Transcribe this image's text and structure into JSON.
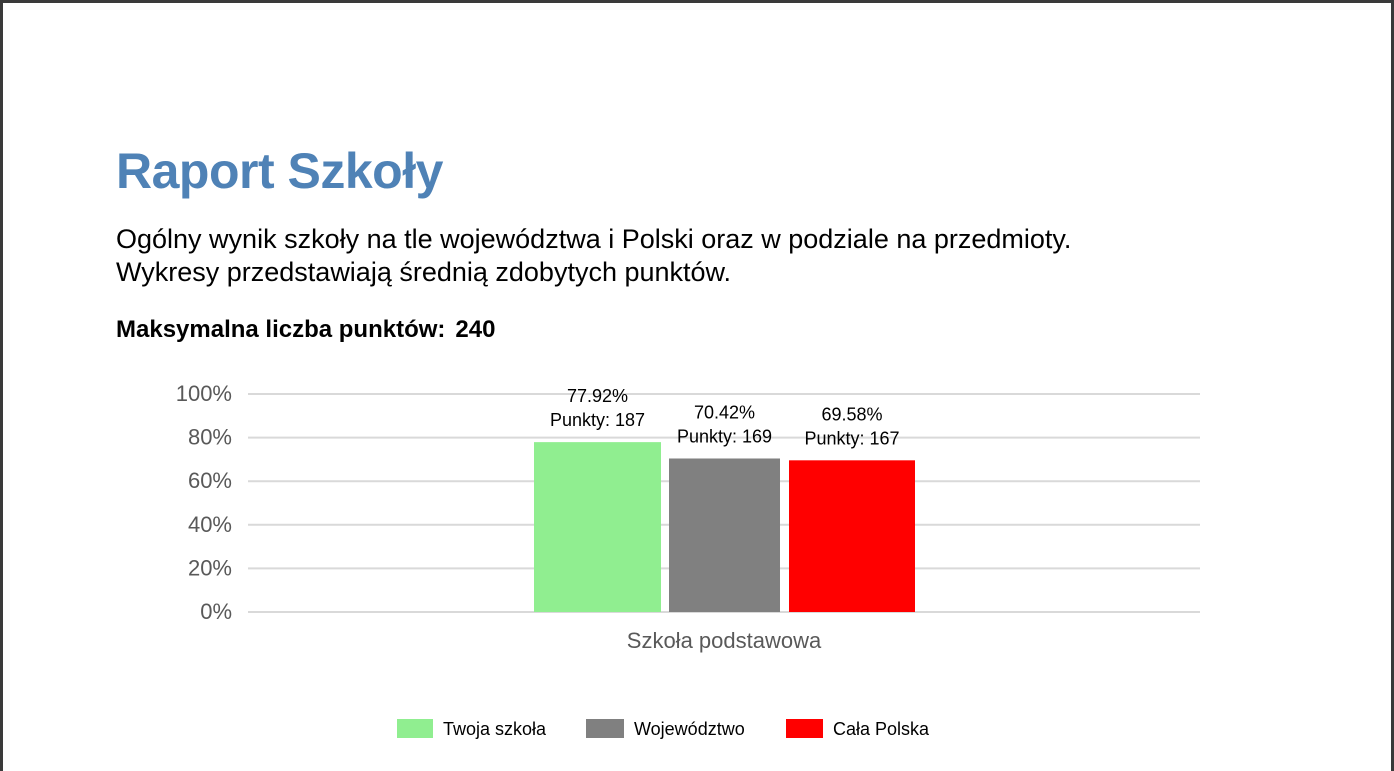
{
  "title": "Raport Szkoły",
  "intro": {
    "line1": "Ogólny wynik szkoły na tle województwa i Polski oraz w podziale na przedmioty.",
    "line2": "Wykresy przedstawiają średnią zdobytych punktów."
  },
  "max_points": {
    "label": "Maksymalna liczba punktów:",
    "value": "240"
  },
  "chart_data": {
    "type": "bar",
    "categories": [
      "Szkoła podstawowa"
    ],
    "series": [
      {
        "name": "Twoja szkoła",
        "values": [
          77.92
        ],
        "label_pct": "77.92%",
        "label_pts": "Punkty: 187",
        "color": "#90ee90"
      },
      {
        "name": "Województwo",
        "values": [
          70.42
        ],
        "label_pct": "70.42%",
        "label_pts": "Punkty: 169",
        "color": "#808080"
      },
      {
        "name": "Cała Polska",
        "values": [
          69.58
        ],
        "label_pct": "69.58%",
        "label_pts": "Punkty: 167",
        "color": "#ff0000"
      }
    ],
    "yticks": [
      "0%",
      "20%",
      "40%",
      "60%",
      "80%",
      "100%"
    ],
    "ylim": [
      0,
      100
    ],
    "grid": true,
    "legend": "bottom"
  }
}
